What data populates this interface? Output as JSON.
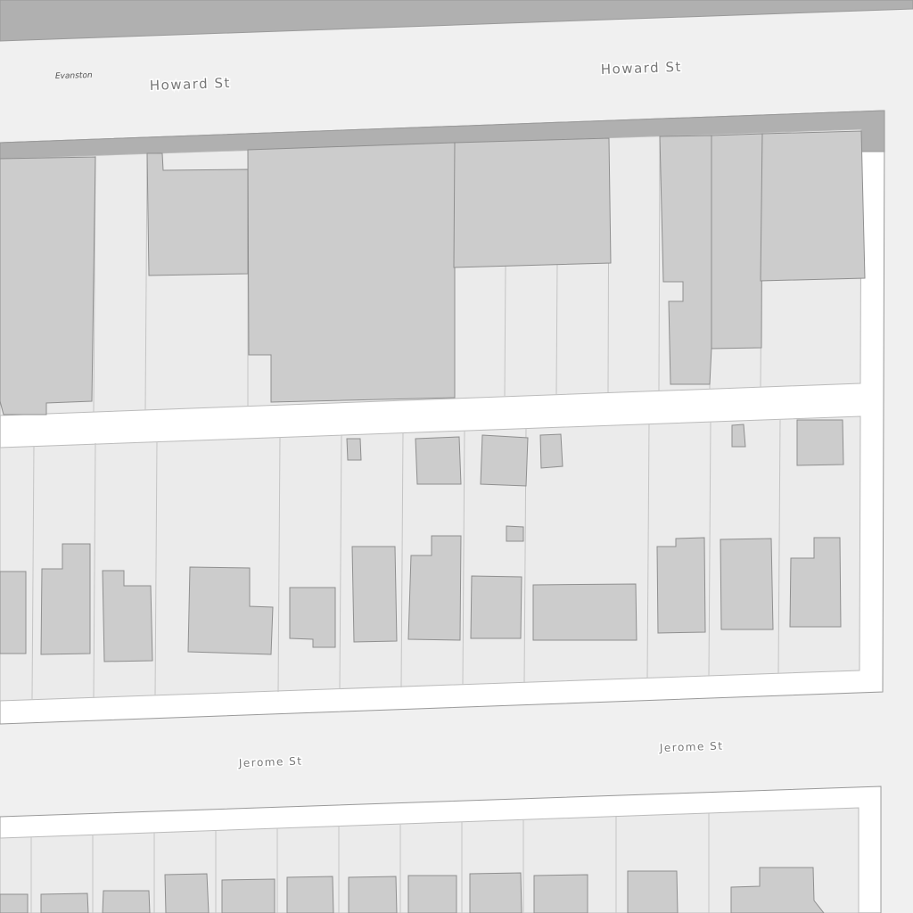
{
  "labels": {
    "place": "Evanston",
    "howard_left": "Howard St",
    "howard_right": "Howard St",
    "jerome_left": "Jerome St",
    "jerome_right": "Jerome St"
  }
}
